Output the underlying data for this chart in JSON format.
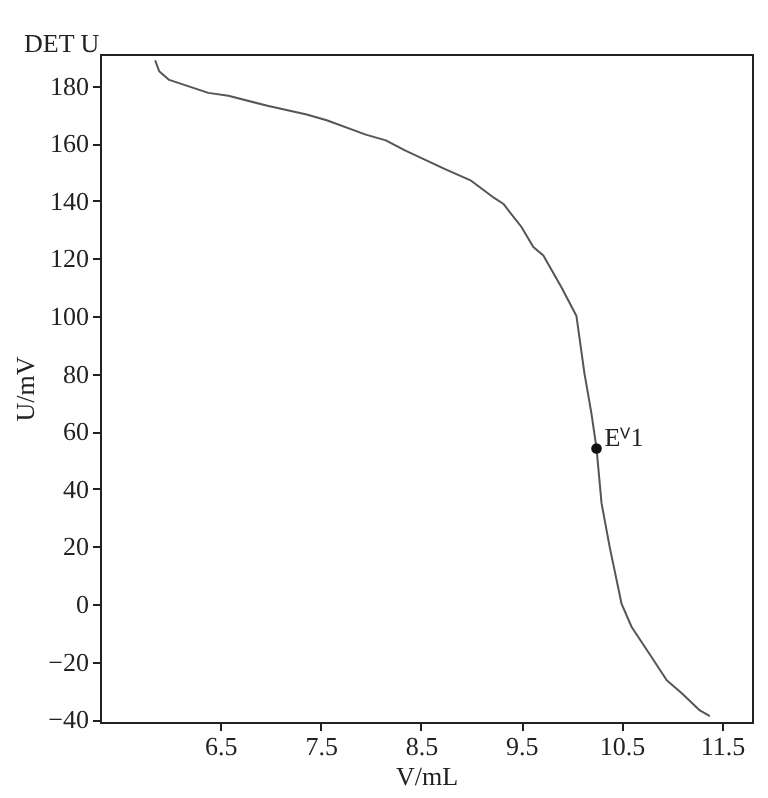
{
  "chart_data": {
    "type": "line",
    "xlabel": "V/mL",
    "ylabel": "U/mV",
    "x": [
      5.85,
      5.89,
      5.99,
      6.38,
      6.58,
      6.97,
      7.36,
      7.56,
      7.95,
      8.15,
      8.34,
      8.74,
      9.0,
      9.23,
      9.32,
      9.5,
      9.62,
      9.72,
      9.9,
      10.05,
      10.13,
      10.2,
      10.25,
      10.3,
      10.38,
      10.5,
      10.6,
      10.79,
      10.95,
      11.1,
      11.28,
      11.38
    ],
    "series": [
      {
        "color": "#555555",
        "values": [
          188.8,
          185,
          182,
          177.5,
          176.5,
          173,
          170,
          168,
          163,
          161,
          157.5,
          151,
          147,
          141,
          139,
          131,
          124,
          121,
          110,
          100,
          80,
          66,
          54,
          35,
          20,
          0,
          -8,
          -18,
          -26.5,
          -31,
          -37,
          -39
        ]
      }
    ],
    "annotations": [
      "DET U",
      {
        "text": "Eⱽ1",
        "x": 10.25,
        "y": 54
      }
    ],
    "xlim": [
      5.3,
      11.8
    ],
    "ylim": [
      -41,
      191
    ],
    "xticks": [
      6.5,
      7.5,
      8.5,
      9.5,
      10.5,
      11.5
    ],
    "yticks": [
      -40,
      -20,
      0,
      20,
      40,
      60,
      80,
      100,
      120,
      140,
      160,
      180
    ],
    "grid": false
  }
}
